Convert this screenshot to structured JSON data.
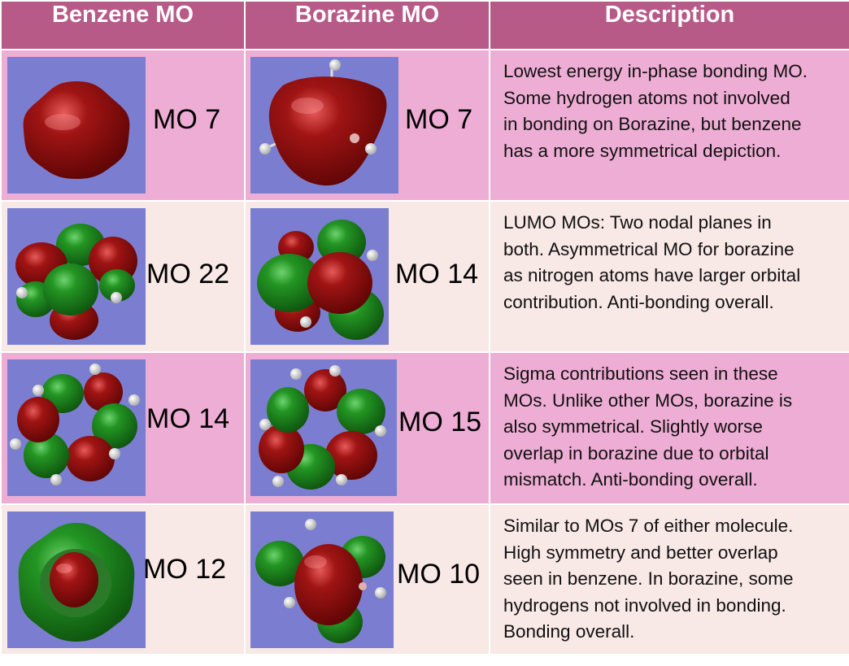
{
  "headers": [
    "Benzene MO",
    "Borazine MO",
    "Description"
  ],
  "rows": [
    {
      "benzene": {
        "label": "MO 7",
        "image": "benzene-mo7-orbital"
      },
      "borazine": {
        "label": "MO 7",
        "image": "borazine-mo7-orbital"
      },
      "description": [
        "Lowest energy in-phase bonding MO.",
        "Some hydrogen atoms not involved",
        "in bonding on Borazine, but benzene",
        "has a more symmetrical depiction."
      ]
    },
    {
      "benzene": {
        "label": "MO 22",
        "image": "benzene-mo22-orbital"
      },
      "borazine": {
        "label": "MO 14",
        "image": "borazine-mo14-orbital"
      },
      "description": [
        "LUMO MOs:  Two nodal planes in",
        "both. Asymmetrical MO for borazine",
        "as nitrogen atoms have larger orbital",
        "contribution. Anti-bonding overall."
      ]
    },
    {
      "benzene": {
        "label": "MO 14",
        "image": "benzene-mo14-orbital"
      },
      "borazine": {
        "label": "MO 15",
        "image": "borazine-mo15-orbital"
      },
      "description": [
        "Sigma contributions seen in these",
        "MOs. Unlike other MOs, borazine is",
        "also symmetrical. Slightly worse",
        "overlap in borazine due to orbital",
        "mismatch. Anti-bonding overall."
      ]
    },
    {
      "benzene": {
        "label": "MO 12",
        "image": "benzene-mo12-orbital"
      },
      "borazine": {
        "label": "MO 10",
        "image": "borazine-mo10-orbital"
      },
      "description": [
        "Similar to MOs 7 of either molecule.",
        "High symmetry and better overlap",
        "seen in benzene. In borazine, some",
        "hydrogens not involved in bonding.",
        "Bonding overall."
      ]
    }
  ],
  "colors": {
    "header": "#b75a88",
    "row_odd": "#eeadd4",
    "row_even": "#f8e8e6",
    "orbital_background": "#7b7ed0",
    "positive_lobe": "#8b0a0a",
    "negative_lobe": "#1f8a1f",
    "hydrogen": "#f2f2f2"
  }
}
